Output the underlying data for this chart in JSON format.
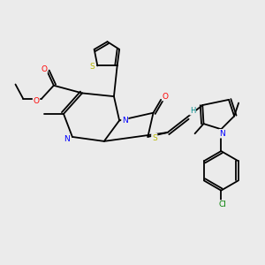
{
  "background_color": "#ebebeb",
  "atom_colors": {
    "S": "#b8b800",
    "N": "#0000ff",
    "O": "#ff0000",
    "Cl": "#008000",
    "C": "#000000",
    "H": "#008b8b"
  },
  "bond_lw": 1.3,
  "font_size": 6.5
}
